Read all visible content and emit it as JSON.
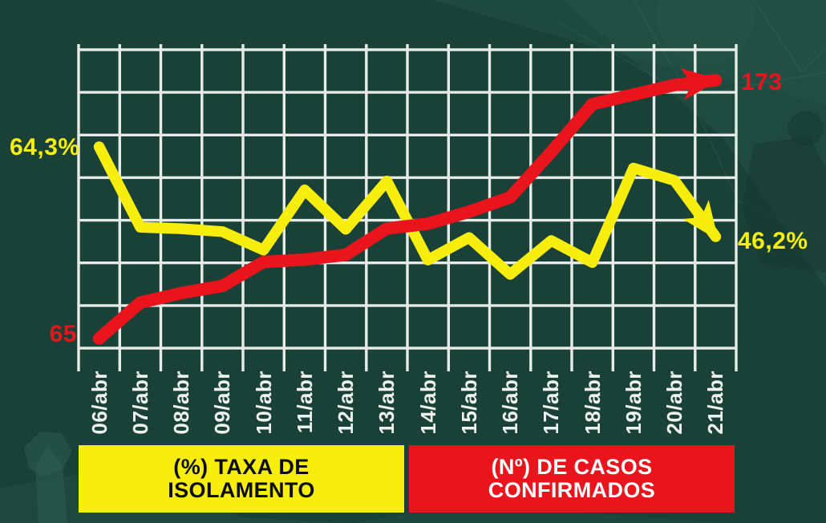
{
  "colors": {
    "background": "#1a4137",
    "grid": "#e7ebe7",
    "yellow": "#f8ee0e",
    "red": "#e9141c",
    "xlabel": "#eef2ee",
    "legend_yellow_text": "#0c0c0c",
    "legend_red_text": "#ffffff"
  },
  "chart_data": {
    "type": "line",
    "categories": [
      "06/abr",
      "07/abr",
      "08/abr",
      "09/abr",
      "10/abr",
      "11/abr",
      "12/abr",
      "13/abr",
      "14/abr",
      "15/abr",
      "16/abr",
      "17/abr",
      "18/abr",
      "19/abr",
      "20/abr",
      "21/abr"
    ],
    "series": [
      {
        "name": "(%) TAXA DE ISOLAMENTO",
        "color": "#f8ee0e",
        "start_label": "64,3%",
        "end_label": "46,2%",
        "values": [
          64.3,
          48.1,
          47.8,
          47.2,
          43.5,
          55.6,
          47.7,
          57.4,
          41.5,
          46.0,
          38.6,
          45.4,
          41.0,
          60.0,
          57.5,
          46.2
        ]
      },
      {
        "name": "(Nº) DE CASOS CONFIRMADOS",
        "color": "#e9141c",
        "start_label": "65",
        "end_label": "173",
        "values": [
          65,
          80,
          84,
          87,
          97,
          98,
          100,
          111,
          113,
          118,
          124,
          143,
          163,
          167,
          171,
          173
        ]
      }
    ],
    "grid": true,
    "legend_position": "bottom",
    "x_tick_rotation": -90,
    "note": "Only start and end values are labeled on the image; intermediate values are estimated from line positions."
  },
  "legend": [
    {
      "line1": "(%) TAXA DE",
      "line2": "ISOLAMENTO"
    },
    {
      "line1": "(Nº) DE CASOS",
      "line2": "CONFIRMADOS"
    }
  ]
}
